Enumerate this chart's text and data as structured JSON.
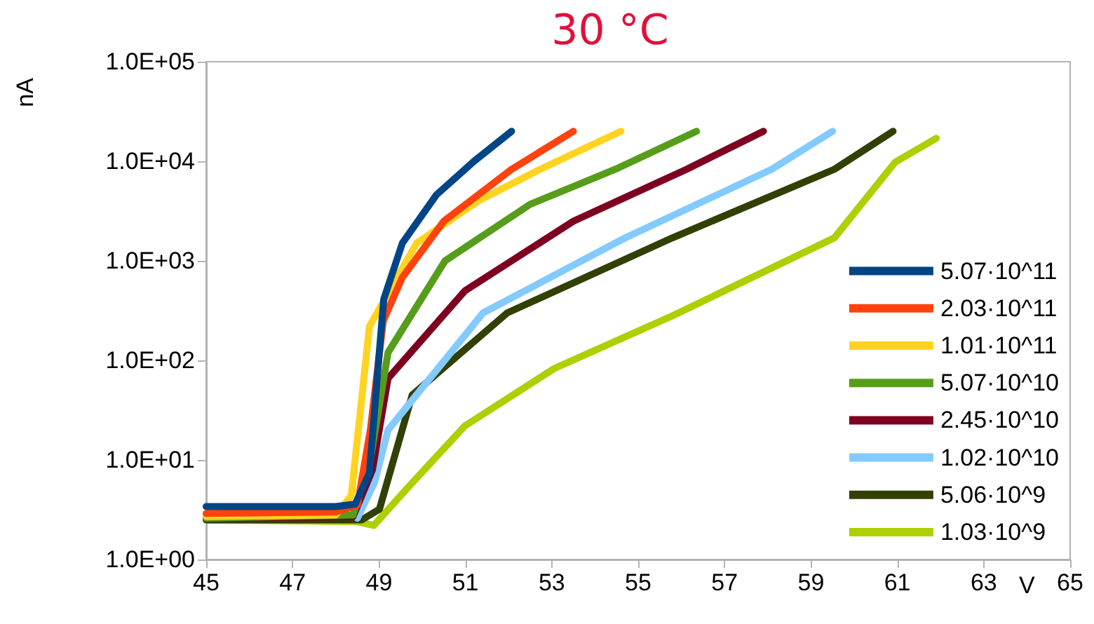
{
  "chart_data": {
    "type": "line",
    "title": "30 °C",
    "xlabel": "V",
    "ylabel": "nA",
    "xlim": [
      45,
      65
    ],
    "xticks": [
      45,
      47,
      49,
      51,
      53,
      55,
      57,
      59,
      61,
      63,
      65
    ],
    "ylim": [
      1,
      100000
    ],
    "yticks": [
      {
        "value": 1,
        "label": "1.0E+00"
      },
      {
        "value": 10,
        "label": "1.0E+01"
      },
      {
        "value": 100,
        "label": "1.0E+02"
      },
      {
        "value": 1000,
        "label": "1.0E+03"
      },
      {
        "value": 10000,
        "label": "1.0E+04"
      },
      {
        "value": 100000,
        "label": "1.0E+05"
      }
    ],
    "log": "y",
    "grid": false,
    "legend": "bottom right",
    "marker": "none",
    "line_style": "solid",
    "series": [
      {
        "name": "5.07·10^11",
        "color": "#004586",
        "x": [
          45,
          48,
          48.45,
          48.78,
          48.95,
          49.11,
          49.54,
          50.33,
          51.2,
          52.07
        ],
        "values": [
          3.4,
          3.4,
          3.6,
          7.4,
          60,
          410,
          1500,
          4600,
          10000,
          20000
        ]
      },
      {
        "name": "2.03·10^11",
        "color": "#ff420e",
        "x": [
          45,
          48,
          48.5,
          48.8,
          49.1,
          49.54,
          50.5,
          52.07,
          53.5
        ],
        "values": [
          2.9,
          3,
          3.5,
          20,
          250,
          680,
          2500,
          8300,
          20000
        ]
      },
      {
        "name": "1.01·10^11",
        "color": "#ffd320",
        "x": [
          45,
          48,
          48.36,
          48.78,
          49.87,
          51.3,
          52.73,
          54.6
        ],
        "values": [
          2.7,
          2.8,
          4.4,
          220,
          1500,
          4000,
          8300,
          20000
        ]
      },
      {
        "name": "5.07·10^10",
        "color": "#579d1c",
        "x": [
          45,
          48.4,
          48.8,
          49.21,
          50.53,
          52.5,
          54.47,
          56.35
        ],
        "values": [
          2.6,
          2.8,
          10,
          120,
          1000,
          3700,
          8300,
          20000
        ]
      },
      {
        "name": "2.45·10^10",
        "color": "#7e0021",
        "x": [
          45,
          48.4,
          48.85,
          49.21,
          50.99,
          53.5,
          56.12,
          57.9
        ],
        "values": [
          2.6,
          2.7,
          8,
          66,
          500,
          2500,
          8300,
          20000
        ]
      },
      {
        "name": "1.02·10^10",
        "color": "#83caff",
        "x": [
          48.5,
          48.9,
          49.21,
          51.41,
          54.7,
          58.09,
          59.5
        ],
        "values": [
          2.6,
          6,
          20,
          300,
          1700,
          8300,
          20000
        ]
      },
      {
        "name": "5.06·10^9",
        "color": "#314004",
        "x": [
          45,
          48.6,
          49.01,
          49.77,
          51.97,
          55.79,
          59.54,
          60.9
        ],
        "values": [
          2.5,
          2.5,
          3.2,
          45,
          300,
          1700,
          8300,
          20000
        ]
      },
      {
        "name": "1.03·10^9",
        "color": "#aecf00",
        "x": [
          45,
          48.5,
          48.88,
          49.77,
          50.99,
          53.06,
          55.79,
          59.54,
          60.95,
          61.9
        ],
        "values": [
          2.5,
          2.4,
          2.2,
          5.9,
          22,
          83,
          280,
          1700,
          9800,
          17000
        ]
      }
    ]
  }
}
